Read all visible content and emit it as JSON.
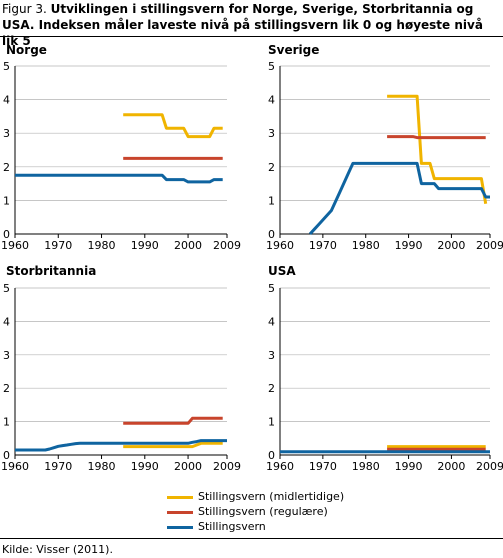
{
  "figure": {
    "label": "Figur 3.",
    "title": "Utviklingen i stillingsvern for Norge, Sverige, Storbritannia og USA. Indeksen måler laveste nivå på stillingsvern lik 0 og høyeste nivå lik 5"
  },
  "colors": {
    "midlertidige": "#f0b400",
    "regulaere": "#c8442c",
    "stillingsvern": "#0f64a0"
  },
  "legend": [
    {
      "key": "midlertidige",
      "label": "Stillingsvern (midlertidige)"
    },
    {
      "key": "regulaere",
      "label": "Stillingsvern (regulære)"
    },
    {
      "key": "stillingsvern",
      "label": "Stillingsvern"
    }
  ],
  "source": "Kilde: Visser (2011).",
  "chart_data": [
    {
      "type": "line",
      "title": "Norge",
      "xlim": [
        1960,
        2009
      ],
      "ylim": [
        0,
        5
      ],
      "xticks": [
        "1960",
        "1970",
        "1980",
        "1990",
        "2000",
        "2009"
      ],
      "yticks": [
        "0",
        "1",
        "2",
        "3",
        "4",
        "5"
      ],
      "series": [
        {
          "key": "midlertidige",
          "x": [
            1985,
            1986,
            1987,
            1988,
            1989,
            1990,
            1991,
            1992,
            1993,
            1994,
            1995,
            1996,
            1997,
            1998,
            1999,
            2000,
            2001,
            2002,
            2003,
            2004,
            2005,
            2006,
            2007,
            2008
          ],
          "y": [
            3.55,
            3.55,
            3.55,
            3.55,
            3.55,
            3.55,
            3.55,
            3.55,
            3.55,
            3.55,
            3.15,
            3.15,
            3.15,
            3.15,
            3.15,
            2.9,
            2.9,
            2.9,
            2.9,
            2.9,
            2.9,
            3.15,
            3.15,
            3.15
          ]
        },
        {
          "key": "regulaere",
          "x": [
            1985,
            2008
          ],
          "y": [
            2.25,
            2.25
          ]
        },
        {
          "key": "stillingsvern",
          "x": [
            1960,
            1961,
            1962,
            1963,
            1964,
            1965,
            1966,
            1967,
            1968,
            1969,
            1970,
            1971,
            1972,
            1973,
            1974,
            1975,
            1976,
            1977,
            1978,
            1979,
            1980,
            1981,
            1982,
            1983,
            1984,
            1985,
            1986,
            1987,
            1988,
            1989,
            1990,
            1991,
            1992,
            1993,
            1994,
            1995,
            1996,
            1997,
            1998,
            1999,
            2000,
            2001,
            2002,
            2003,
            2004,
            2005,
            2006,
            2007,
            2008
          ],
          "y": [
            1.75,
            1.75,
            1.75,
            1.75,
            1.75,
            1.75,
            1.75,
            1.75,
            1.75,
            1.75,
            1.75,
            1.75,
            1.75,
            1.75,
            1.75,
            1.75,
            1.75,
            1.75,
            1.75,
            1.75,
            1.75,
            1.75,
            1.75,
            1.75,
            1.75,
            1.75,
            1.75,
            1.75,
            1.75,
            1.75,
            1.75,
            1.75,
            1.75,
            1.75,
            1.75,
            1.62,
            1.62,
            1.62,
            1.62,
            1.62,
            1.55,
            1.55,
            1.55,
            1.55,
            1.55,
            1.55,
            1.62,
            1.62,
            1.62
          ]
        }
      ]
    },
    {
      "type": "line",
      "title": "Sverige",
      "xlim": [
        1960,
        2009
      ],
      "ylim": [
        0,
        5
      ],
      "xticks": [
        "1960",
        "1970",
        "1980",
        "1990",
        "2000",
        "2009"
      ],
      "yticks": [
        "0",
        "1",
        "2",
        "3",
        "4",
        "5"
      ],
      "series": [
        {
          "key": "midlertidige",
          "x": [
            1985,
            1986,
            1987,
            1988,
            1989,
            1990,
            1991,
            1992,
            1993,
            1994,
            1995,
            1996,
            1997,
            1998,
            1999,
            2000,
            2001,
            2002,
            2003,
            2004,
            2005,
            2006,
            2007,
            2008
          ],
          "y": [
            4.1,
            4.1,
            4.1,
            4.1,
            4.1,
            4.1,
            4.1,
            4.1,
            2.1,
            2.1,
            2.1,
            1.65,
            1.65,
            1.65,
            1.65,
            1.65,
            1.65,
            1.65,
            1.65,
            1.65,
            1.65,
            1.65,
            1.65,
            0.9
          ]
        },
        {
          "key": "regulaere",
          "x": [
            1985,
            1991,
            1992,
            2008
          ],
          "y": [
            2.9,
            2.9,
            2.87,
            2.87
          ]
        },
        {
          "key": "stillingsvern",
          "x": [
            1967,
            1968,
            1969,
            1970,
            1971,
            1972,
            1973,
            1974,
            1975,
            1976,
            1977,
            1978,
            1979,
            1980,
            1981,
            1982,
            1983,
            1984,
            1985,
            1986,
            1987,
            1988,
            1989,
            1990,
            1991,
            1992,
            1993,
            1994,
            1995,
            1996,
            1997,
            1998,
            1999,
            2000,
            2001,
            2002,
            2003,
            2004,
            2005,
            2006,
            2007,
            2008,
            2009
          ],
          "y": [
            0,
            0.14,
            0.28,
            0.42,
            0.56,
            0.7,
            0.98,
            1.26,
            1.54,
            1.82,
            2.1,
            2.1,
            2.1,
            2.1,
            2.1,
            2.1,
            2.1,
            2.1,
            2.1,
            2.1,
            2.1,
            2.1,
            2.1,
            2.1,
            2.1,
            2.1,
            1.5,
            1.5,
            1.5,
            1.5,
            1.35,
            1.35,
            1.35,
            1.35,
            1.35,
            1.35,
            1.35,
            1.35,
            1.35,
            1.35,
            1.35,
            1.1,
            1.1
          ]
        }
      ]
    },
    {
      "type": "line",
      "title": "Storbritannia",
      "xlim": [
        1960,
        2009
      ],
      "ylim": [
        0,
        5
      ],
      "xticks": [
        "1960",
        "1970",
        "1980",
        "1990",
        "2000",
        "2009"
      ],
      "yticks": [
        "0",
        "1",
        "2",
        "3",
        "4",
        "5"
      ],
      "series": [
        {
          "key": "midlertidige",
          "x": [
            1985,
            2000,
            2001,
            2002,
            2003,
            2008
          ],
          "y": [
            0.25,
            0.25,
            0.25,
            0.3,
            0.35,
            0.35
          ]
        },
        {
          "key": "regulaere",
          "x": [
            1985,
            1986,
            1987,
            1988,
            1989,
            1990,
            1991,
            1992,
            1993,
            1994,
            1995,
            1996,
            1997,
            1998,
            1999,
            2000,
            2001,
            2002,
            2003,
            2004,
            2005,
            2006,
            2007,
            2008
          ],
          "y": [
            0.95,
            0.95,
            0.95,
            0.95,
            0.95,
            0.95,
            0.95,
            0.95,
            0.95,
            0.95,
            0.95,
            0.95,
            0.95,
            0.95,
            0.95,
            0.95,
            1.1,
            1.1,
            1.1,
            1.1,
            1.1,
            1.1,
            1.1,
            1.1
          ]
        },
        {
          "key": "stillingsvern",
          "x": [
            1960,
            1961,
            1962,
            1963,
            1964,
            1965,
            1966,
            1967,
            1968,
            1969,
            1970,
            1971,
            1972,
            1973,
            1974,
            1975,
            1976,
            1977,
            1978,
            1979,
            1980,
            1981,
            1982,
            1983,
            1984,
            1985,
            1986,
            1987,
            1988,
            1989,
            1990,
            1991,
            1992,
            1993,
            1994,
            1995,
            1996,
            1997,
            1998,
            1999,
            2000,
            2001,
            2002,
            2003,
            2004,
            2005,
            2006,
            2007,
            2008,
            2009
          ],
          "y": [
            0.15,
            0.15,
            0.15,
            0.15,
            0.15,
            0.15,
            0.15,
            0.15,
            0.18,
            0.22,
            0.26,
            0.28,
            0.3,
            0.32,
            0.34,
            0.35,
            0.35,
            0.35,
            0.35,
            0.35,
            0.35,
            0.35,
            0.35,
            0.35,
            0.35,
            0.35,
            0.35,
            0.35,
            0.35,
            0.35,
            0.35,
            0.35,
            0.35,
            0.35,
            0.35,
            0.35,
            0.35,
            0.35,
            0.35,
            0.35,
            0.35,
            0.38,
            0.4,
            0.43,
            0.43,
            0.43,
            0.43,
            0.43,
            0.43,
            0.43
          ]
        }
      ]
    },
    {
      "type": "line",
      "title": "USA",
      "xlim": [
        1960,
        2009
      ],
      "ylim": [
        0,
        5
      ],
      "xticks": [
        "1960",
        "1970",
        "1980",
        "1990",
        "2000",
        "2009"
      ],
      "yticks": [
        "0",
        "1",
        "2",
        "3",
        "4",
        "5"
      ],
      "series": [
        {
          "key": "midlertidige",
          "x": [
            1985,
            2008
          ],
          "y": [
            0.25,
            0.25
          ]
        },
        {
          "key": "regulaere",
          "x": [
            1985,
            2008
          ],
          "y": [
            0.17,
            0.17
          ]
        },
        {
          "key": "stillingsvern",
          "x": [
            1960,
            2009
          ],
          "y": [
            0.1,
            0.1
          ]
        }
      ]
    }
  ]
}
